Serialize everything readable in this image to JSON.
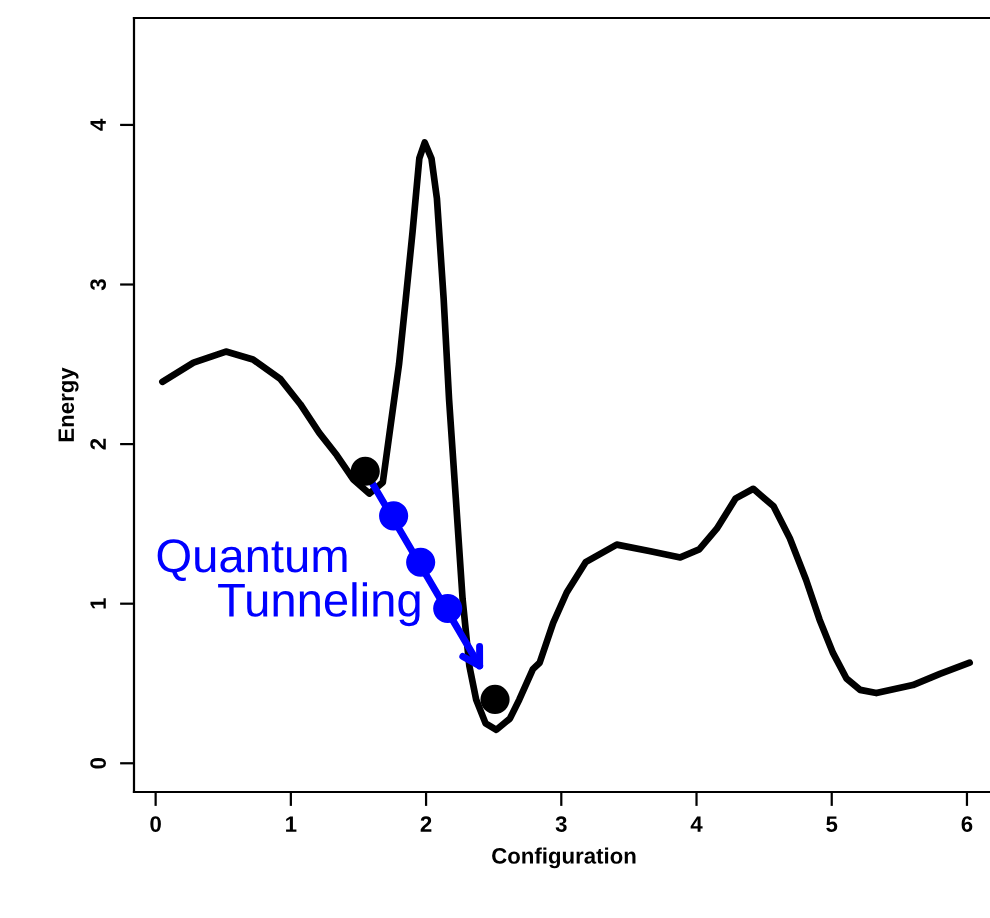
{
  "chart_data": {
    "type": "line",
    "xlabel": "Configuration",
    "ylabel": "Energy",
    "xlim": [
      -0.16,
      6.2
    ],
    "ylim": [
      -0.18,
      4.67
    ],
    "xticks": [
      0,
      1,
      2,
      3,
      4,
      5,
      6
    ],
    "yticks": [
      0,
      1,
      2,
      3,
      4
    ],
    "grid": false,
    "legend": false,
    "series": [
      {
        "color": "#000000",
        "marker": "none",
        "line_style": "solid",
        "x": [
          0.05,
          0.28,
          0.52,
          0.72,
          0.92,
          1.07,
          1.21,
          1.34,
          1.46,
          1.58,
          1.68,
          1.73,
          1.8,
          1.85,
          1.9,
          1.95,
          1.99,
          2.04,
          2.08,
          2.13,
          2.17,
          2.22,
          2.27,
          2.32,
          2.37,
          2.44,
          2.52,
          2.62,
          2.69,
          2.79,
          2.84,
          2.94,
          3.04,
          3.18,
          3.41,
          3.65,
          3.88,
          4.02,
          4.15,
          4.29,
          4.42,
          4.57,
          4.69,
          4.81,
          4.91,
          5.01,
          5.11,
          5.21,
          5.33,
          5.6,
          5.8,
          6.02
        ],
        "values": [
          2.39,
          2.51,
          2.58,
          2.53,
          2.41,
          2.25,
          2.07,
          1.93,
          1.78,
          1.69,
          1.76,
          2.07,
          2.5,
          2.91,
          3.33,
          3.79,
          3.89,
          3.79,
          3.54,
          2.91,
          2.28,
          1.66,
          1.03,
          0.61,
          0.4,
          0.25,
          0.21,
          0.28,
          0.4,
          0.59,
          0.63,
          0.88,
          1.07,
          1.26,
          1.37,
          1.33,
          1.29,
          1.34,
          1.47,
          1.66,
          1.72,
          1.61,
          1.41,
          1.15,
          0.9,
          0.69,
          0.53,
          0.46,
          0.44,
          0.49,
          0.56,
          0.63
        ]
      },
      {
        "type": "scatter",
        "color": "#000000",
        "marker": "circle",
        "x": [
          1.55,
          2.51
        ],
        "values": [
          1.83,
          0.4
        ]
      },
      {
        "type": "scatter",
        "color": "#0000ff",
        "marker": "circle",
        "x": [
          1.76,
          1.96,
          2.16
        ],
        "values": [
          1.55,
          1.26,
          0.97
        ]
      }
    ],
    "annotations": [
      "Quantum",
      "Tunneling"
    ]
  }
}
